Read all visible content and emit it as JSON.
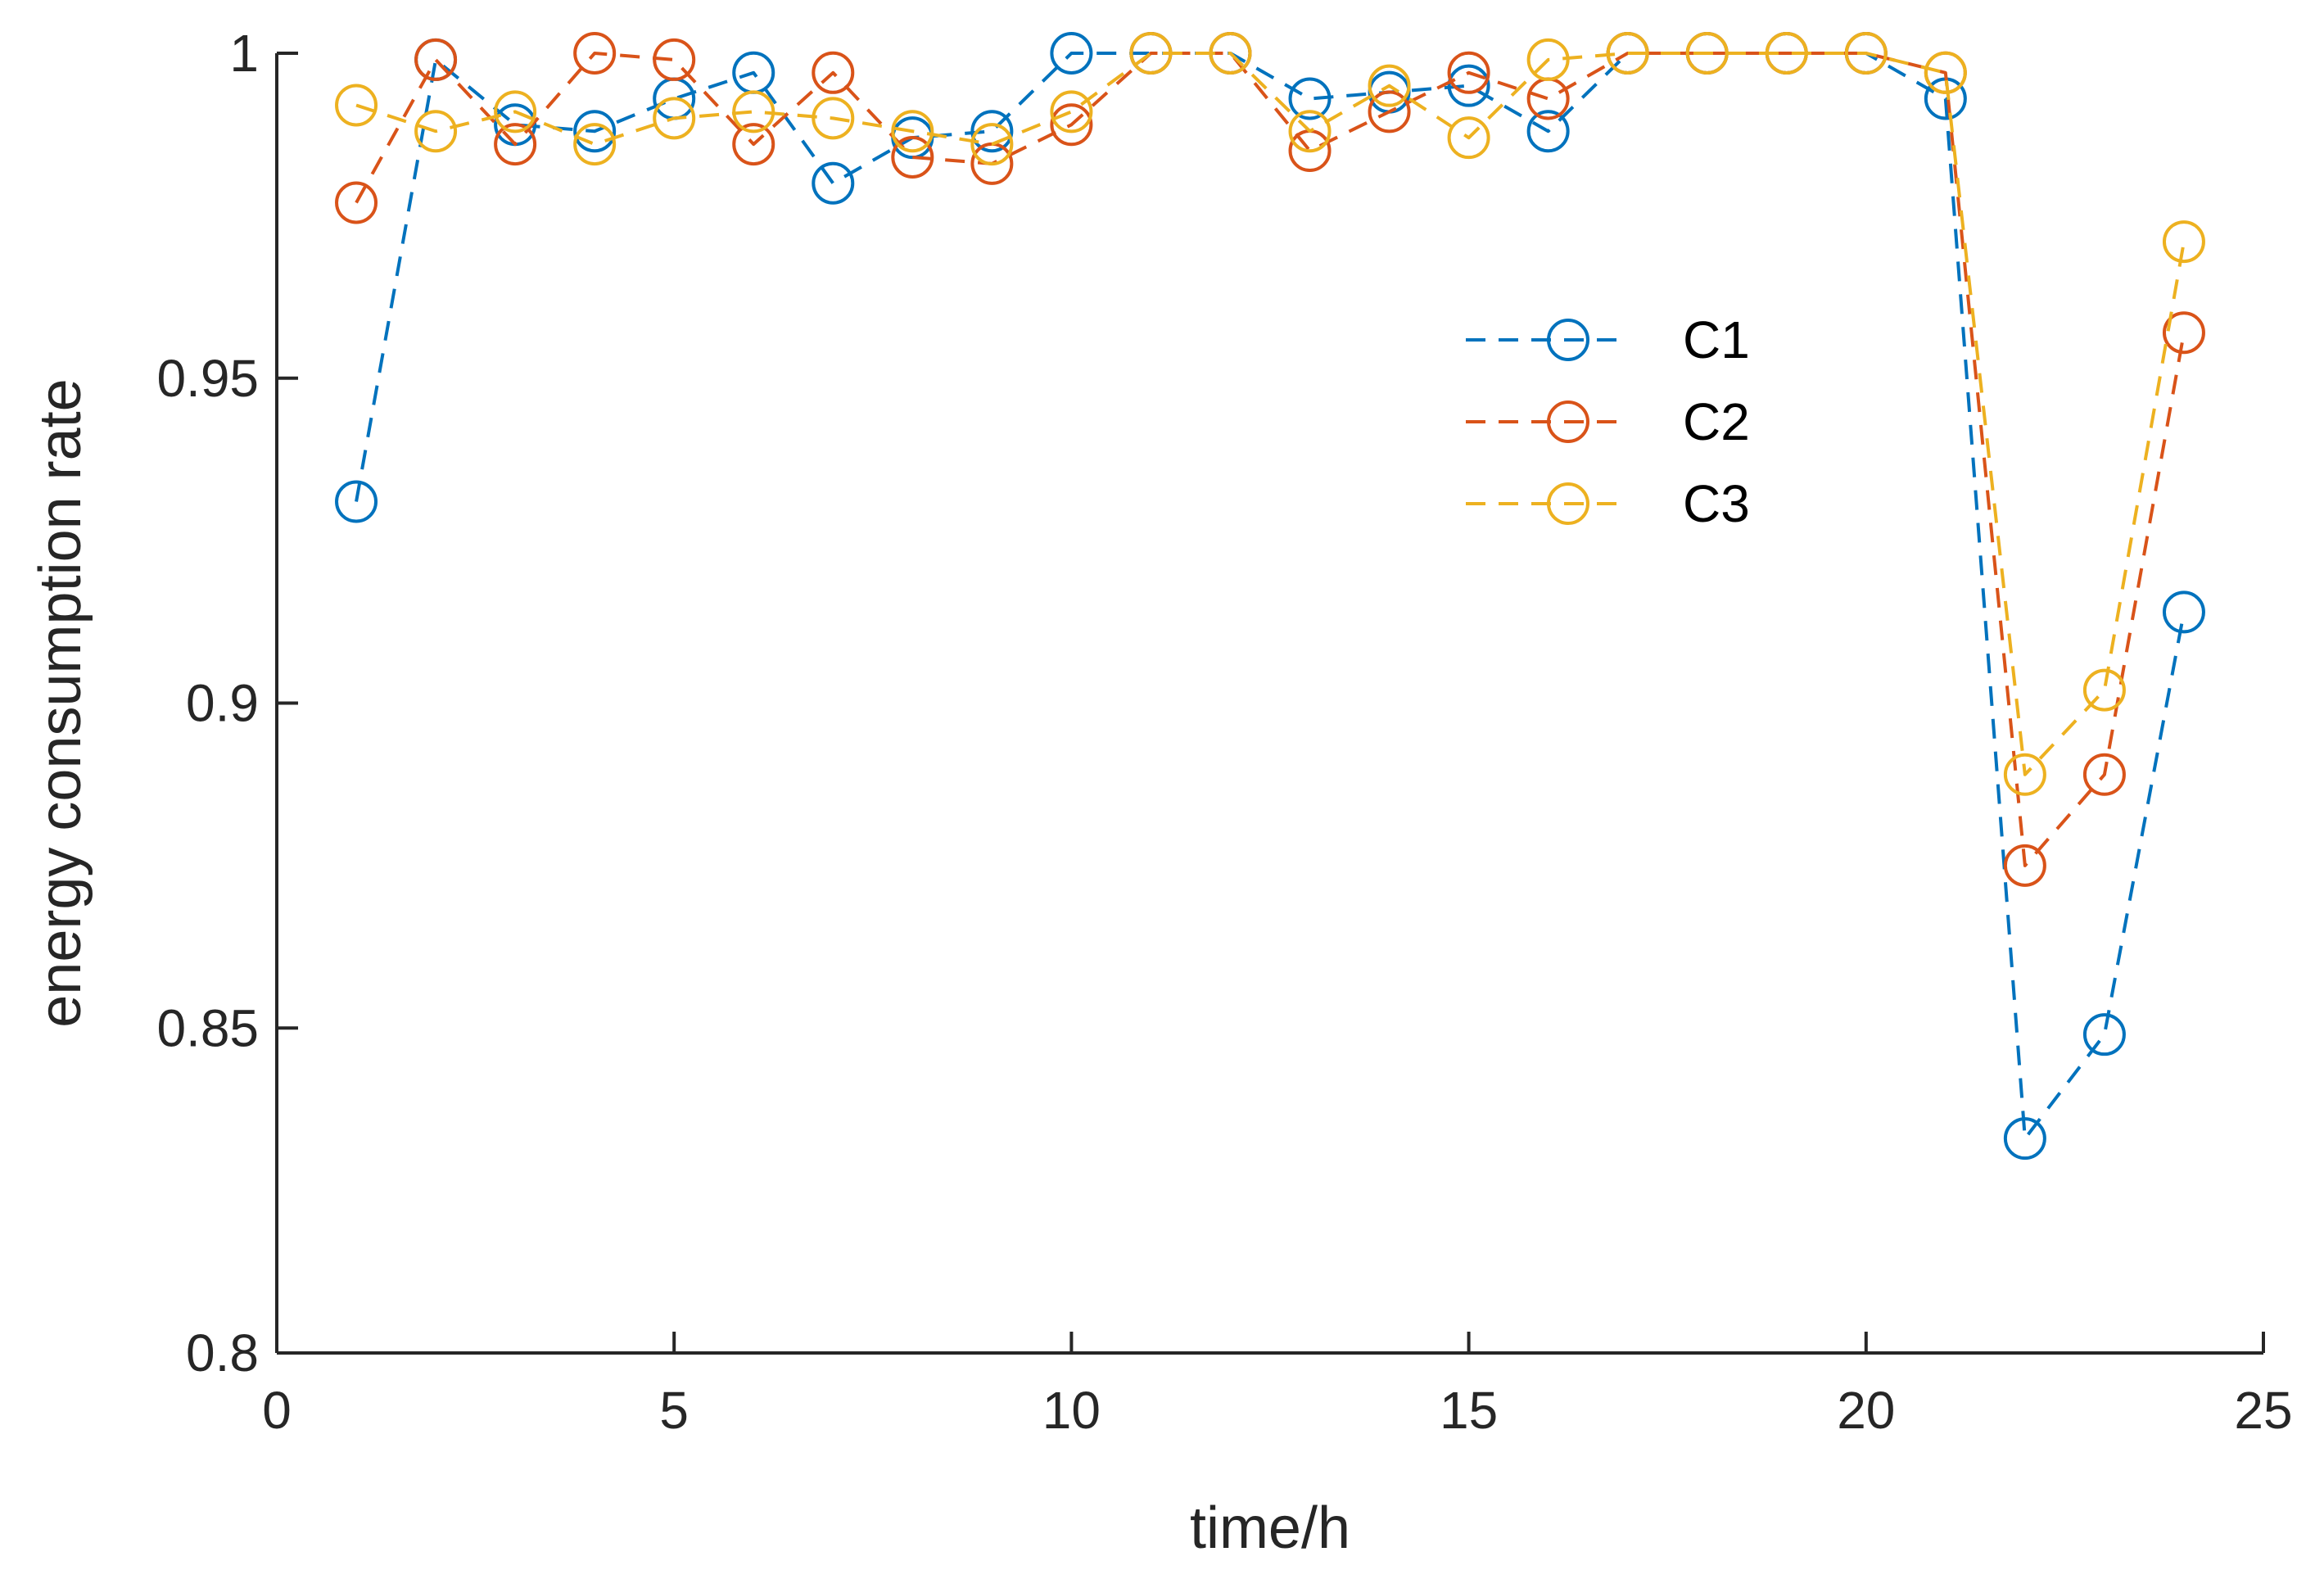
{
  "chart_data": {
    "type": "line",
    "title": "",
    "xlabel": "time/h",
    "ylabel": "energy consumption rate",
    "xlim": [
      0,
      25
    ],
    "ylim": [
      0.8,
      1.0
    ],
    "xticks": [
      0,
      5,
      10,
      15,
      20,
      25
    ],
    "xtick_labels": [
      "0",
      "5",
      "10",
      "15",
      "20",
      "25"
    ],
    "yticks": [
      0.8,
      0.85,
      0.9,
      0.95,
      1.0
    ],
    "ytick_labels": [
      "0.8",
      "0.85",
      "0.9",
      "0.95",
      "1"
    ],
    "grid": false,
    "legend_position": "upper-right-inside",
    "x": [
      1,
      2,
      3,
      4,
      5,
      6,
      7,
      8,
      9,
      10,
      11,
      12,
      13,
      14,
      15,
      16,
      17,
      18,
      19,
      20,
      21,
      22,
      23,
      24
    ],
    "series": [
      {
        "name": "C1",
        "color": "#0072BD",
        "line_style": "dashed",
        "marker": "circle",
        "values": [
          0.931,
          0.999,
          0.989,
          0.988,
          0.993,
          0.997,
          0.98,
          0.987,
          0.988,
          1.0,
          1.0,
          1.0,
          0.993,
          0.994,
          0.995,
          0.988,
          1.0,
          1.0,
          1.0,
          1.0,
          0.993,
          0.833,
          0.849,
          0.914
        ]
      },
      {
        "name": "C2",
        "color": "#D95319",
        "line_style": "dashed",
        "marker": "circle",
        "values": [
          0.977,
          0.999,
          0.986,
          1.0,
          0.999,
          0.986,
          0.997,
          0.984,
          0.983,
          0.989,
          1.0,
          1.0,
          0.985,
          0.991,
          0.997,
          0.993,
          1.0,
          1.0,
          1.0,
          1.0,
          0.997,
          0.875,
          0.889,
          0.957
        ]
      },
      {
        "name": "C3",
        "color": "#EDB120",
        "line_style": "dashed",
        "marker": "circle",
        "values": [
          0.992,
          0.988,
          0.991,
          0.986,
          0.99,
          0.991,
          0.99,
          0.988,
          0.986,
          0.991,
          1.0,
          1.0,
          0.988,
          0.995,
          0.987,
          0.999,
          1.0,
          1.0,
          1.0,
          1.0,
          0.997,
          0.889,
          0.902,
          0.971
        ]
      }
    ]
  }
}
